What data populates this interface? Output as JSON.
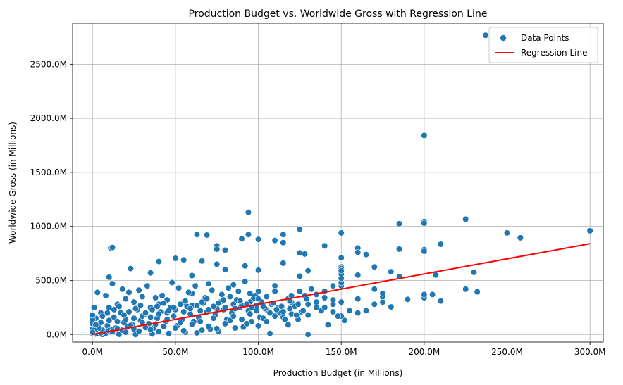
{
  "chart_data": {
    "type": "scatter",
    "title": "Production Budget vs. Worldwide Gross with Regression Line",
    "xlabel": "Production Budget (in Millions)",
    "ylabel": "Worldwide Gross (in Millions)",
    "xlim": [
      -12,
      308
    ],
    "ylim": [
      -70,
      2880
    ],
    "xticks": [
      0,
      50,
      100,
      150,
      200,
      250,
      300
    ],
    "yticks": [
      0,
      500,
      1000,
      1500,
      2000,
      2500
    ],
    "xtick_labels": [
      "0.0M",
      "50.0M",
      "100.0M",
      "150.0M",
      "200.0M",
      "250.0M",
      "300.0M"
    ],
    "ytick_labels": [
      "0.0M",
      "500.0M",
      "1000.0M",
      "1500.0M",
      "2000.0M",
      "2500.0M"
    ],
    "grid": true,
    "legend_position": "top-right",
    "colors": {
      "points": "#1f77b4",
      "regression": "#ff0000",
      "grid": "#b0b0b0"
    },
    "series": [
      {
        "name": "Data Points",
        "kind": "scatter",
        "points": [
          [
            237,
            2768
          ],
          [
            200,
            1842
          ],
          [
            94,
            1130
          ],
          [
            225,
            1066
          ],
          [
            200,
            1045
          ],
          [
            200,
            1030
          ],
          [
            185,
            1025
          ],
          [
            125,
            975
          ],
          [
            300,
            960
          ],
          [
            250,
            940
          ],
          [
            150,
            940
          ],
          [
            63,
            925
          ],
          [
            69,
            920
          ],
          [
            115,
            925
          ],
          [
            94,
            925
          ],
          [
            258,
            895
          ],
          [
            90,
            885
          ],
          [
            100,
            880
          ],
          [
            110,
            870
          ],
          [
            115,
            850
          ],
          [
            210,
            835
          ],
          [
            75,
            820
          ],
          [
            140,
            820
          ],
          [
            11,
            800
          ],
          [
            12,
            805
          ],
          [
            160,
            800
          ],
          [
            200,
            785
          ],
          [
            200,
            770
          ],
          [
            185,
            790
          ],
          [
            80,
            780
          ],
          [
            75,
            790
          ],
          [
            125,
            755
          ],
          [
            160,
            760
          ],
          [
            128,
            745
          ],
          [
            165,
            740
          ],
          [
            150,
            710
          ],
          [
            50,
            705
          ],
          [
            55,
            690
          ],
          [
            40,
            675
          ],
          [
            66,
            680
          ],
          [
            115,
            660
          ],
          [
            170,
            625
          ],
          [
            150,
            625
          ],
          [
            150,
            610
          ],
          [
            92,
            635
          ],
          [
            75,
            650
          ],
          [
            23,
            610
          ],
          [
            80,
            600
          ],
          [
            100,
            595
          ],
          [
            130,
            590
          ],
          [
            180,
            580
          ],
          [
            230,
            575
          ],
          [
            207,
            550
          ],
          [
            185,
            535
          ],
          [
            10,
            530
          ],
          [
            160,
            550
          ],
          [
            125,
            540
          ],
          [
            60,
            545
          ],
          [
            35,
            570
          ],
          [
            145,
            450
          ],
          [
            225,
            420
          ],
          [
            232,
            395
          ],
          [
            210,
            310
          ],
          [
            200,
            340
          ],
          [
            200,
            370
          ],
          [
            205,
            370
          ],
          [
            190,
            325
          ],
          [
            180,
            255
          ],
          [
            175,
            300
          ],
          [
            175,
            350
          ],
          [
            175,
            380
          ],
          [
            170,
            420
          ],
          [
            160,
            330
          ],
          [
            160,
            200
          ],
          [
            150,
            170
          ],
          [
            130,
            0
          ],
          [
            107,
            10
          ],
          [
            130,
            280
          ],
          [
            120,
            300
          ],
          [
            140,
            340
          ],
          [
            145,
            210
          ],
          [
            135,
            250
          ],
          [
            100,
            400
          ],
          [
            95,
            380
          ],
          [
            110,
            450
          ],
          [
            105,
            230
          ],
          [
            115,
            160
          ],
          [
            85,
            460
          ],
          [
            70,
            470
          ],
          [
            60,
            380
          ],
          [
            55,
            300
          ],
          [
            45,
            320
          ],
          [
            40,
            280
          ],
          [
            35,
            250
          ],
          [
            30,
            350
          ],
          [
            25,
            300
          ],
          [
            20,
            330
          ],
          [
            15,
            280
          ],
          [
            10,
            250
          ],
          [
            5,
            200
          ],
          [
            2,
            150
          ],
          [
            0,
            100
          ],
          [
            0,
            50
          ],
          [
            0,
            10
          ],
          [
            1,
            250
          ],
          [
            3,
            390
          ],
          [
            8,
            360
          ],
          [
            12,
            470
          ],
          [
            18,
            420
          ],
          [
            22,
            390
          ],
          [
            28,
            410
          ],
          [
            33,
            450
          ],
          [
            38,
            340
          ],
          [
            42,
            360
          ],
          [
            48,
            480
          ],
          [
            52,
            430
          ],
          [
            58,
            390
          ],
          [
            62,
            450
          ],
          [
            68,
            340
          ],
          [
            72,
            410
          ],
          [
            78,
            370
          ],
          [
            82,
            430
          ],
          [
            88,
            400
          ],
          [
            92,
            490
          ],
          [
            98,
            360
          ],
          [
            102,
            300
          ],
          [
            108,
            280
          ],
          [
            112,
            250
          ],
          [
            118,
            330
          ],
          [
            122,
            260
          ],
          [
            128,
            360
          ],
          [
            132,
            420
          ],
          [
            138,
            220
          ],
          [
            142,
            90
          ],
          [
            148,
            170
          ],
          [
            152,
            130
          ],
          [
            155,
            220
          ],
          [
            165,
            220
          ],
          [
            170,
            280
          ],
          [
            118,
            90
          ],
          [
            124,
            140
          ],
          [
            96,
            120
          ],
          [
            86,
            60
          ],
          [
            76,
            30
          ],
          [
            66,
            40
          ],
          [
            56,
            20
          ],
          [
            46,
            10
          ],
          [
            36,
            5
          ],
          [
            26,
            0
          ],
          [
            16,
            2
          ],
          [
            6,
            1
          ],
          [
            4,
            30
          ],
          [
            9,
            80
          ],
          [
            14,
            60
          ],
          [
            19,
            110
          ],
          [
            24,
            90
          ],
          [
            29,
            130
          ],
          [
            34,
            100
          ],
          [
            39,
            150
          ],
          [
            44,
            120
          ],
          [
            49,
            170
          ],
          [
            54,
            140
          ],
          [
            59,
            190
          ],
          [
            64,
            160
          ],
          [
            69,
            210
          ],
          [
            74,
            180
          ],
          [
            79,
            230
          ],
          [
            84,
            200
          ],
          [
            89,
            250
          ],
          [
            94,
            220
          ],
          [
            99,
            270
          ],
          [
            104,
            240
          ],
          [
            109,
            290
          ],
          [
            114,
            260
          ],
          [
            119,
            310
          ],
          [
            124,
            280
          ],
          [
            129,
            330
          ],
          [
            7,
            20
          ],
          [
            11,
            45
          ],
          [
            13,
            160
          ],
          [
            17,
            200
          ],
          [
            21,
            70
          ],
          [
            27,
            230
          ],
          [
            31,
            180
          ],
          [
            37,
            60
          ],
          [
            41,
            210
          ],
          [
            47,
            250
          ],
          [
            51,
            80
          ],
          [
            57,
            260
          ],
          [
            61,
            120
          ],
          [
            67,
            290
          ],
          [
            71,
            50
          ],
          [
            77,
            300
          ],
          [
            81,
            140
          ],
          [
            87,
            320
          ],
          [
            91,
            70
          ],
          [
            97,
            330
          ],
          [
            101,
            160
          ],
          [
            2,
            5
          ],
          [
            3,
            8
          ],
          [
            5,
            15
          ],
          [
            6,
            40
          ],
          [
            8,
            12
          ],
          [
            10,
            35
          ],
          [
            12,
            25
          ],
          [
            15,
            55
          ],
          [
            18,
            40
          ],
          [
            20,
            20
          ],
          [
            23,
            85
          ],
          [
            25,
            50
          ],
          [
            28,
            30
          ],
          [
            30,
            110
          ],
          [
            32,
            65
          ],
          [
            35,
            45
          ],
          [
            38,
            95
          ],
          [
            40,
            25
          ],
          [
            43,
            75
          ],
          [
            45,
            140
          ],
          [
            50,
            60
          ],
          [
            53,
            110
          ],
          [
            55,
            35
          ],
          [
            60,
            95
          ],
          [
            63,
            15
          ],
          [
            65,
            120
          ],
          [
            70,
            75
          ],
          [
            73,
            150
          ],
          [
            75,
            55
          ],
          [
            80,
            100
          ],
          [
            83,
            130
          ],
          [
            85,
            170
          ],
          [
            90,
            140
          ],
          [
            93,
            100
          ],
          [
            95,
            190
          ],
          [
            100,
            80
          ],
          [
            103,
            150
          ],
          [
            105,
            120
          ],
          [
            110,
            170
          ],
          [
            113,
            200
          ],
          [
            116,
            140
          ],
          [
            120,
            190
          ],
          [
            126,
            210
          ],
          [
            130,
            180
          ],
          [
            135,
            300
          ],
          [
            140,
            250
          ],
          [
            145,
            280
          ],
          [
            150,
            300
          ],
          [
            150,
            450
          ],
          [
            150,
            480
          ],
          [
            150,
            520
          ],
          [
            150,
            560
          ],
          [
            150,
            590
          ],
          [
            140,
            400
          ],
          [
            135,
            370
          ],
          [
            145,
            320
          ],
          [
            125,
            400
          ],
          [
            120,
            360
          ],
          [
            110,
            400
          ],
          [
            105,
            350
          ],
          [
            100,
            330
          ],
          [
            95,
            300
          ],
          [
            90,
            270
          ],
          [
            85,
            280
          ],
          [
            80,
            250
          ],
          [
            75,
            240
          ],
          [
            70,
            230
          ],
          [
            65,
            220
          ],
          [
            60,
            270
          ],
          [
            55,
            210
          ],
          [
            50,
            230
          ],
          [
            45,
            200
          ],
          [
            40,
            190
          ],
          [
            35,
            160
          ],
          [
            30,
            170
          ],
          [
            25,
            150
          ],
          [
            20,
            140
          ],
          [
            15,
            120
          ],
          [
            10,
            130
          ],
          [
            5,
            110
          ],
          [
            4,
            60
          ],
          [
            1,
            40
          ],
          [
            0,
            20
          ],
          [
            0,
            140
          ],
          [
            0,
            180
          ],
          [
            2,
            90
          ],
          [
            6,
            170
          ],
          [
            9,
            200
          ],
          [
            13,
            230
          ],
          [
            16,
            260
          ],
          [
            19,
            180
          ],
          [
            22,
            210
          ],
          [
            26,
            240
          ],
          [
            29,
            270
          ],
          [
            32,
            200
          ],
          [
            36,
            230
          ],
          [
            39,
            260
          ],
          [
            43,
            290
          ],
          [
            46,
            220
          ],
          [
            49,
            250
          ],
          [
            53,
            280
          ],
          [
            56,
            310
          ],
          [
            59,
            240
          ],
          [
            63,
            270
          ],
          [
            66,
            300
          ],
          [
            69,
            330
          ],
          [
            73,
            260
          ],
          [
            76,
            290
          ],
          [
            79,
            320
          ],
          [
            83,
            350
          ],
          [
            86,
            240
          ],
          [
            89,
            310
          ],
          [
            93,
            280
          ],
          [
            96,
            250
          ],
          [
            99,
            220
          ],
          [
            103,
            260
          ],
          [
            107,
            200
          ],
          [
            111,
            230
          ],
          [
            115,
            210
          ],
          [
            119,
            240
          ],
          [
            123,
            180
          ],
          [
            127,
            220
          ]
        ]
      },
      {
        "name": "Regression Line",
        "kind": "line",
        "x": [
          0,
          300
        ],
        "y": [
          0,
          840
        ]
      }
    ]
  }
}
